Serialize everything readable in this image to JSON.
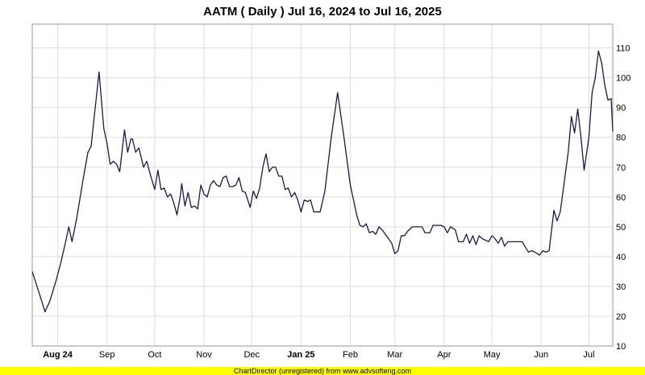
{
  "chart_data": {
    "type": "line",
    "title": "AATM ( Daily ) Jul 16, 2024 to Jul 16, 2025",
    "xlabel": "",
    "ylabel": "",
    "ylim": [
      10,
      118
    ],
    "yticks": [
      10,
      20,
      30,
      40,
      50,
      60,
      70,
      80,
      90,
      100,
      110
    ],
    "y_axis_side": "right",
    "grid": true,
    "x_range": [
      "2024-07-16",
      "2025-07-16"
    ],
    "x_tick_labels": [
      {
        "label": "Aug 24",
        "date": "2024-08-01",
        "bold": true
      },
      {
        "label": "Sep",
        "date": "2024-09-01",
        "bold": false
      },
      {
        "label": "Oct",
        "date": "2024-10-01",
        "bold": false
      },
      {
        "label": "Nov",
        "date": "2024-11-01",
        "bold": false
      },
      {
        "label": "Dec",
        "date": "2024-12-01",
        "bold": false
      },
      {
        "label": "Jan 25",
        "date": "2025-01-01",
        "bold": true
      },
      {
        "label": "Feb",
        "date": "2025-02-01",
        "bold": false
      },
      {
        "label": "Mar",
        "date": "2025-03-01",
        "bold": false
      },
      {
        "label": "Apr",
        "date": "2025-04-01",
        "bold": false
      },
      {
        "label": "May",
        "date": "2025-05-01",
        "bold": false
      },
      {
        "label": "Jun",
        "date": "2025-06-01",
        "bold": false
      },
      {
        "label": "Jul",
        "date": "2025-07-01",
        "bold": false
      }
    ],
    "series": [
      {
        "line_color": "#1a1a4a",
        "points": [
          [
            "2024-07-16",
            35
          ],
          [
            "2024-07-19",
            30
          ],
          [
            "2024-07-22",
            25
          ],
          [
            "2024-07-24",
            21.5
          ],
          [
            "2024-07-27",
            25
          ],
          [
            "2024-07-31",
            32
          ],
          [
            "2024-08-03",
            38
          ],
          [
            "2024-08-06",
            45
          ],
          [
            "2024-08-08",
            50
          ],
          [
            "2024-08-10",
            45
          ],
          [
            "2024-08-13",
            53
          ],
          [
            "2024-08-17",
            66
          ],
          [
            "2024-08-20",
            75
          ],
          [
            "2024-08-22",
            77
          ],
          [
            "2024-08-27",
            102
          ],
          [
            "2024-08-30",
            83
          ],
          [
            "2024-09-01",
            78
          ],
          [
            "2024-09-03",
            71
          ],
          [
            "2024-09-05",
            72
          ],
          [
            "2024-09-07",
            71
          ],
          [
            "2024-09-09",
            68.5
          ],
          [
            "2024-09-12",
            82.5
          ],
          [
            "2024-09-14",
            75
          ],
          [
            "2024-09-16",
            79.5
          ],
          [
            "2024-09-17",
            79.5
          ],
          [
            "2024-09-19",
            75
          ],
          [
            "2024-09-21",
            76.5
          ],
          [
            "2024-09-24",
            70
          ],
          [
            "2024-09-26",
            72
          ],
          [
            "2024-09-28",
            68
          ],
          [
            "2024-10-01",
            62.5
          ],
          [
            "2024-10-03",
            69
          ],
          [
            "2024-10-05",
            62.5
          ],
          [
            "2024-10-07",
            63
          ],
          [
            "2024-10-09",
            60
          ],
          [
            "2024-10-11",
            61
          ],
          [
            "2024-10-13",
            58
          ],
          [
            "2024-10-15",
            54
          ],
          [
            "2024-10-17",
            60
          ],
          [
            "2024-10-18",
            64.5
          ],
          [
            "2024-10-20",
            57
          ],
          [
            "2024-10-22",
            61.5
          ],
          [
            "2024-10-24",
            56.5
          ],
          [
            "2024-10-26",
            57
          ],
          [
            "2024-10-28",
            56
          ],
          [
            "2024-10-30",
            64
          ],
          [
            "2024-11-01",
            61
          ],
          [
            "2024-11-03",
            60
          ],
          [
            "2024-11-05",
            64
          ],
          [
            "2024-11-07",
            65.5
          ],
          [
            "2024-11-09",
            64
          ],
          [
            "2024-11-11",
            63.5
          ],
          [
            "2024-11-13",
            66.5
          ],
          [
            "2024-11-15",
            67
          ],
          [
            "2024-11-17",
            63.5
          ],
          [
            "2024-11-19",
            63.5
          ],
          [
            "2024-11-21",
            64
          ],
          [
            "2024-11-23",
            66.5
          ],
          [
            "2024-11-25",
            62
          ],
          [
            "2024-11-27",
            61.5
          ],
          [
            "2024-11-30",
            56.5
          ],
          [
            "2024-12-02",
            62
          ],
          [
            "2024-12-04",
            59.5
          ],
          [
            "2024-12-06",
            63
          ],
          [
            "2024-12-08",
            70
          ],
          [
            "2024-12-10",
            74.5
          ],
          [
            "2024-12-12",
            68.5
          ],
          [
            "2024-12-14",
            70
          ],
          [
            "2024-12-16",
            70
          ],
          [
            "2024-12-18",
            67
          ],
          [
            "2024-12-20",
            67
          ],
          [
            "2024-12-22",
            62.5
          ],
          [
            "2024-12-24",
            63
          ],
          [
            "2024-12-26",
            60
          ],
          [
            "2024-12-28",
            61.5
          ],
          [
            "2024-12-30",
            59
          ],
          [
            "2025-01-01",
            55
          ],
          [
            "2025-01-03",
            59
          ],
          [
            "2025-01-05",
            58.5
          ],
          [
            "2025-01-07",
            59
          ],
          [
            "2025-01-09",
            55
          ],
          [
            "2025-01-13",
            55
          ],
          [
            "2025-01-16",
            62
          ],
          [
            "2025-01-20",
            80
          ],
          [
            "2025-01-24",
            95
          ],
          [
            "2025-01-28",
            80
          ],
          [
            "2025-02-01",
            64
          ],
          [
            "2025-02-05",
            54
          ],
          [
            "2025-02-07",
            50.5
          ],
          [
            "2025-02-09",
            50
          ],
          [
            "2025-02-11",
            51
          ],
          [
            "2025-02-13",
            48
          ],
          [
            "2025-02-15",
            48.5
          ],
          [
            "2025-02-17",
            47.5
          ],
          [
            "2025-02-19",
            50
          ],
          [
            "2025-02-21",
            49
          ],
          [
            "2025-02-23",
            47.5
          ],
          [
            "2025-02-25",
            46
          ],
          [
            "2025-02-27",
            44.5
          ],
          [
            "2025-03-01",
            41
          ],
          [
            "2025-03-03",
            42
          ],
          [
            "2025-03-05",
            47
          ],
          [
            "2025-03-07",
            47
          ],
          [
            "2025-03-09",
            48.5
          ],
          [
            "2025-03-12",
            50
          ],
          [
            "2025-03-15",
            50
          ],
          [
            "2025-03-18",
            50
          ],
          [
            "2025-03-20",
            48
          ],
          [
            "2025-03-23",
            48
          ],
          [
            "2025-03-25",
            50.5
          ],
          [
            "2025-03-30",
            50.5
          ],
          [
            "2025-04-01",
            50
          ],
          [
            "2025-04-03",
            48
          ],
          [
            "2025-04-05",
            50
          ],
          [
            "2025-04-08",
            49
          ],
          [
            "2025-04-10",
            45
          ],
          [
            "2025-04-13",
            45
          ],
          [
            "2025-04-15",
            47.5
          ],
          [
            "2025-04-17",
            44.5
          ],
          [
            "2025-04-19",
            47
          ],
          [
            "2025-04-21",
            44
          ],
          [
            "2025-04-23",
            47
          ],
          [
            "2025-04-25",
            46
          ],
          [
            "2025-04-27",
            45.5
          ],
          [
            "2025-04-29",
            45
          ],
          [
            "2025-05-01",
            47
          ],
          [
            "2025-05-03",
            46
          ],
          [
            "2025-05-05",
            44.5
          ],
          [
            "2025-05-07",
            46.5
          ],
          [
            "2025-05-09",
            43.5
          ],
          [
            "2025-05-11",
            45
          ],
          [
            "2025-05-15",
            45
          ],
          [
            "2025-05-20",
            45
          ],
          [
            "2025-05-24",
            41.5
          ],
          [
            "2025-05-26",
            42
          ],
          [
            "2025-05-28",
            41.5
          ],
          [
            "2025-05-31",
            40.5
          ],
          [
            "2025-06-02",
            42
          ],
          [
            "2025-06-04",
            41.5
          ],
          [
            "2025-06-06",
            42
          ],
          [
            "2025-06-09",
            55.5
          ],
          [
            "2025-06-11",
            52
          ],
          [
            "2025-06-13",
            55
          ],
          [
            "2025-06-15",
            63
          ],
          [
            "2025-06-18",
            75
          ],
          [
            "2025-06-20",
            87
          ],
          [
            "2025-06-22",
            81.5
          ],
          [
            "2025-06-24",
            89.5
          ],
          [
            "2025-06-26",
            80
          ],
          [
            "2025-06-28",
            69
          ],
          [
            "2025-07-01",
            80
          ],
          [
            "2025-07-03",
            95
          ],
          [
            "2025-07-05",
            100
          ],
          [
            "2025-07-07",
            109
          ],
          [
            "2025-07-09",
            105
          ],
          [
            "2025-07-11",
            97.5
          ],
          [
            "2025-07-13",
            92.5
          ],
          [
            "2025-07-15",
            93
          ],
          [
            "2025-07-16",
            82
          ]
        ]
      }
    ]
  },
  "footer": {
    "text": "ChartDirector (unregistered) from www.advsofteng.com"
  }
}
